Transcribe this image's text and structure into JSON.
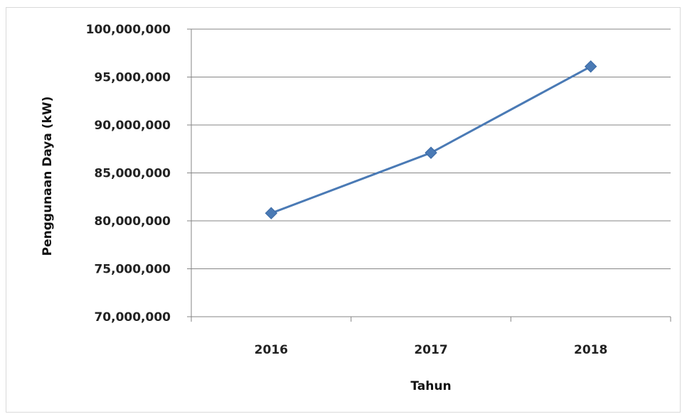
{
  "chart_data": {
    "type": "line",
    "title": "",
    "xlabel": "Tahun",
    "ylabel": "Penggunaan Daya (kW)",
    "categories": [
      "2016",
      "2017",
      "2018"
    ],
    "series": [
      {
        "values": [
          80800000,
          87100000,
          96100000
        ],
        "color": "#4a7ab5",
        "marker": "diamond"
      }
    ],
    "ylim": [
      70000000,
      100000000
    ],
    "ytick_labels": [
      "100,000,000",
      "95,000,000",
      "90,000,000",
      "85,000,000",
      "80,000,000",
      "75,000,000",
      "70,000,000"
    ],
    "ytick_values": [
      100000000,
      95000000,
      90000000,
      85000000,
      80000000,
      75000000,
      70000000
    ],
    "grid": true,
    "legend": "none"
  }
}
